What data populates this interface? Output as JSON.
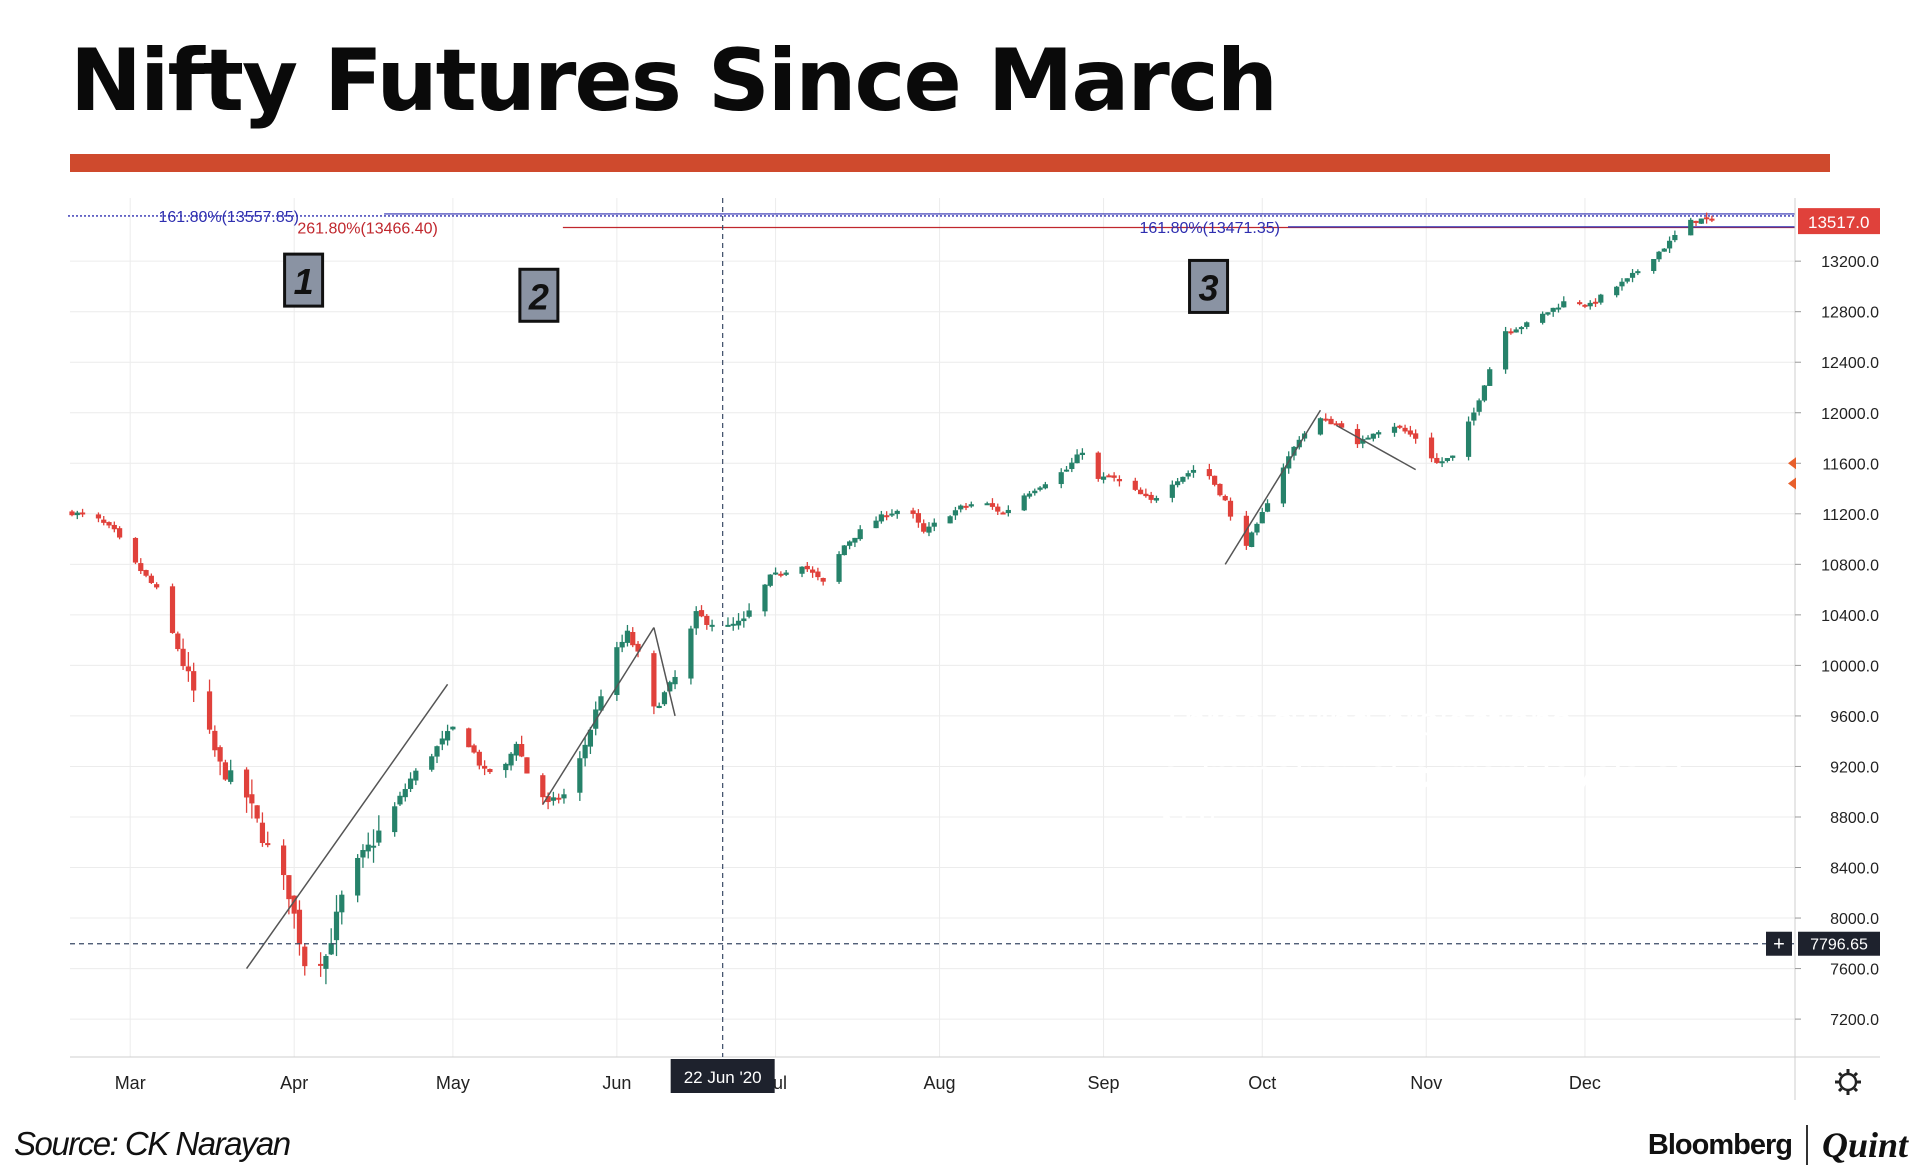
{
  "title": "Nifty Futures Since March",
  "source": "Source: CK Narayan",
  "brand": {
    "left": "Bloomberg",
    "right": "Quint"
  },
  "callout": "Three swing projections culminating at current levels of Nifty",
  "colors": {
    "accent": "#cf4a2d",
    "up": "#26826a",
    "down": "#e0413b",
    "callout_bg": "#4aacc4",
    "fib_blue": "#2f2fb0",
    "fib_red": "#c0272d"
  },
  "chart_data": {
    "type": "candlestick",
    "x_axis": {
      "ticks": [
        "Mar",
        "Apr",
        "May",
        "Jun",
        "Jul",
        "Aug",
        "Sep",
        "Oct",
        "Nov",
        "Dec"
      ]
    },
    "y_axis": {
      "min": 6900,
      "max": 13700,
      "ticks": [
        7200,
        7600,
        8000,
        8400,
        8800,
        9200,
        9600,
        10000,
        10400,
        10800,
        11200,
        11600,
        12000,
        12400,
        12800,
        13200
      ]
    },
    "last_price": "13517.0",
    "crosshair": {
      "date_label": "22 Jun '20",
      "price_label": "7796.65",
      "price": 7796.65
    },
    "fib_levels": [
      {
        "label": "161.80%(13557.85)",
        "price": 13557.85,
        "color": "#2f2fb0"
      },
      {
        "label": "261.80%(13466.40)",
        "price": 13466.4,
        "color": "#c0272d"
      },
      {
        "label": "161.80%(13471.35)",
        "price": 13471.35,
        "color": "#2f2fb0"
      }
    ],
    "swing_labels": [
      "1",
      "2",
      "3"
    ],
    "swing_lines": [
      {
        "from": [
          "Mar 23",
          7600
        ],
        "to": [
          "Apr 30",
          9850
        ]
      },
      {
        "from": [
          "May 18",
          8900
        ],
        "to": [
          "Jun 08",
          10300
        ]
      },
      {
        "from": [
          "Jun 08",
          10300
        ],
        "to": [
          "Jun 12",
          9600
        ]
      },
      {
        "from": [
          "Sep 24",
          10800
        ],
        "to": [
          "Oct 12",
          12020
        ]
      },
      {
        "from": [
          "Oct 15",
          11900
        ],
        "to": [
          "Oct 30",
          11550
        ]
      }
    ],
    "anchors": [
      {
        "d": 0,
        "c": 11210
      },
      {
        "d": 2,
        "c": 11190
      },
      {
        "d": 5,
        "c": 11150
      },
      {
        "d": 8,
        "c": 11060
      },
      {
        "d": 12,
        "c": 10800
      },
      {
        "d": 16,
        "c": 10600
      },
      {
        "d": 22,
        "c": 9900
      },
      {
        "d": 28,
        "c": 9200
      },
      {
        "d": 33,
        "c": 8960
      },
      {
        "d": 36,
        "c": 8650
      },
      {
        "d": 41,
        "c": 8200
      },
      {
        "d": 44,
        "c": 7650
      },
      {
        "d": 48,
        "c": 7700
      },
      {
        "d": 52,
        "c": 8300
      },
      {
        "d": 56,
        "c": 8550
      },
      {
        "d": 60,
        "c": 8800
      },
      {
        "d": 64,
        "c": 9100
      },
      {
        "d": 68,
        "c": 9300
      },
      {
        "d": 72,
        "c": 9500
      },
      {
        "d": 75,
        "c": 9380
      },
      {
        "d": 78,
        "c": 9150
      },
      {
        "d": 82,
        "c": 9200
      },
      {
        "d": 84,
        "c": 9400
      },
      {
        "d": 86,
        "c": 9150
      },
      {
        "d": 90,
        "c": 8900
      },
      {
        "d": 94,
        "c": 9000
      },
      {
        "d": 98,
        "c": 9500
      },
      {
        "d": 102,
        "c": 10050
      },
      {
        "d": 105,
        "c": 10250
      },
      {
        "d": 108,
        "c": 10000
      },
      {
        "d": 110,
        "c": 9650
      },
      {
        "d": 114,
        "c": 9900
      },
      {
        "d": 118,
        "c": 10400
      },
      {
        "d": 120,
        "c": 10350
      },
      {
        "d": 124,
        "c": 10300
      },
      {
        "d": 127,
        "c": 10350
      },
      {
        "d": 132,
        "c": 10700
      },
      {
        "d": 138,
        "c": 10800
      },
      {
        "d": 142,
        "c": 10650
      },
      {
        "d": 146,
        "c": 10950
      },
      {
        "d": 150,
        "c": 11100
      },
      {
        "d": 154,
        "c": 11200
      },
      {
        "d": 158,
        "c": 11250
      },
      {
        "d": 161,
        "c": 11050
      },
      {
        "d": 164,
        "c": 11150
      },
      {
        "d": 168,
        "c": 11250
      },
      {
        "d": 172,
        "c": 11300
      },
      {
        "d": 176,
        "c": 11200
      },
      {
        "d": 180,
        "c": 11350
      },
      {
        "d": 184,
        "c": 11450
      },
      {
        "d": 188,
        "c": 11550
      },
      {
        "d": 191,
        "c": 11700
      },
      {
        "d": 193,
        "c": 11450
      },
      {
        "d": 196,
        "c": 11500
      },
      {
        "d": 200,
        "c": 11400
      },
      {
        "d": 204,
        "c": 11300
      },
      {
        "d": 208,
        "c": 11450
      },
      {
        "d": 212,
        "c": 11550
      },
      {
        "d": 215,
        "c": 11500
      },
      {
        "d": 218,
        "c": 11300
      },
      {
        "d": 221,
        "c": 10900
      },
      {
        "d": 224,
        "c": 11100
      },
      {
        "d": 228,
        "c": 11500
      },
      {
        "d": 232,
        "c": 11800
      },
      {
        "d": 236,
        "c": 11950
      },
      {
        "d": 240,
        "c": 11900
      },
      {
        "d": 242,
        "c": 11700
      },
      {
        "d": 246,
        "c": 11850
      },
      {
        "d": 250,
        "c": 11900
      },
      {
        "d": 254,
        "c": 11800
      },
      {
        "d": 258,
        "c": 11600
      },
      {
        "d": 261,
        "c": 11650
      },
      {
        "d": 265,
        "c": 12000
      },
      {
        "d": 268,
        "c": 12350
      },
      {
        "d": 271,
        "c": 12650
      },
      {
        "d": 275,
        "c": 12700
      },
      {
        "d": 279,
        "c": 12800
      },
      {
        "d": 283,
        "c": 12900
      },
      {
        "d": 287,
        "c": 12850
      },
      {
        "d": 290,
        "c": 12950
      },
      {
        "d": 294,
        "c": 13050
      },
      {
        "d": 298,
        "c": 13200
      },
      {
        "d": 302,
        "c": 13350
      },
      {
        "d": 305,
        "c": 13500
      },
      {
        "d": 308,
        "c": 13530
      },
      {
        "d": 310,
        "c": 13517
      }
    ]
  }
}
